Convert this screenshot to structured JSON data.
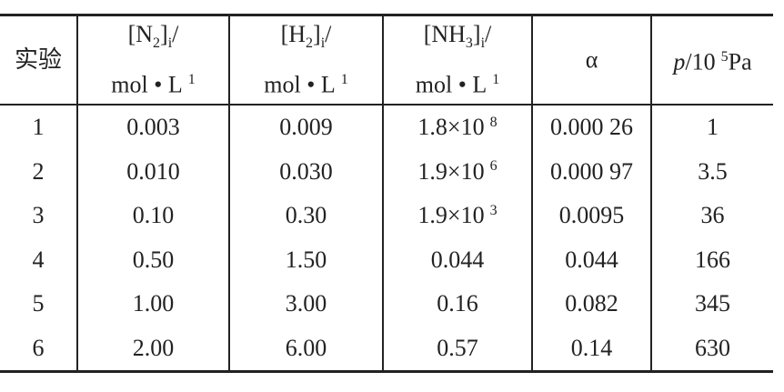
{
  "table": {
    "header": [
      {
        "line1": [
          {
            "text": "实验"
          }
        ]
      },
      {
        "line1": [
          {
            "text": "[N"
          },
          {
            "sub": "2"
          },
          {
            "text": "]"
          },
          {
            "sub": "i"
          },
          {
            "text": "/"
          }
        ],
        "line2": [
          {
            "text": "mol • L"
          },
          {
            "sup": "1"
          }
        ]
      },
      {
        "line1": [
          {
            "text": "[H"
          },
          {
            "sub": "2"
          },
          {
            "text": "]"
          },
          {
            "sub": "i"
          },
          {
            "text": "/"
          }
        ],
        "line2": [
          {
            "text": "mol • L"
          },
          {
            "sup": "1"
          }
        ]
      },
      {
        "line1": [
          {
            "text": "[NH"
          },
          {
            "sub": "3"
          },
          {
            "text": "]"
          },
          {
            "sub": "i"
          },
          {
            "text": "/"
          }
        ],
        "line2": [
          {
            "text": "mol • L"
          },
          {
            "sup": "1"
          }
        ]
      },
      {
        "line1": [
          {
            "text": "α"
          }
        ]
      },
      {
        "line1": [
          {
            "italic": "p"
          },
          {
            "text": "/10"
          },
          {
            "sup": "5"
          },
          {
            "text": "Pa"
          }
        ]
      }
    ],
    "rows": [
      [
        {
          "text": "1"
        },
        {
          "text": "0.003"
        },
        {
          "text": "0.009"
        },
        {
          "text": "1.8×10",
          "sup": "8"
        },
        {
          "text": "0.000 26"
        },
        {
          "text": "1"
        }
      ],
      [
        {
          "text": "2"
        },
        {
          "text": "0.010"
        },
        {
          "text": "0.030"
        },
        {
          "text": "1.9×10",
          "sup": "6"
        },
        {
          "text": "0.000 97"
        },
        {
          "text": "3.5"
        }
      ],
      [
        {
          "text": "3"
        },
        {
          "text": "0.10"
        },
        {
          "text": "0.30"
        },
        {
          "text": "1.9×10",
          "sup": "3"
        },
        {
          "text": "0.0095"
        },
        {
          "text": "36"
        }
      ],
      [
        {
          "text": "4"
        },
        {
          "text": "0.50"
        },
        {
          "text": "1.50"
        },
        {
          "text": "0.044"
        },
        {
          "text": "0.044"
        },
        {
          "text": "166"
        }
      ],
      [
        {
          "text": "5"
        },
        {
          "text": "1.00"
        },
        {
          "text": "3.00"
        },
        {
          "text": "0.16"
        },
        {
          "text": "0.082"
        },
        {
          "text": "345"
        }
      ],
      [
        {
          "text": "6"
        },
        {
          "text": "2.00"
        },
        {
          "text": "6.00"
        },
        {
          "text": "0.57"
        },
        {
          "text": "0.14"
        },
        {
          "text": "630"
        }
      ]
    ]
  }
}
